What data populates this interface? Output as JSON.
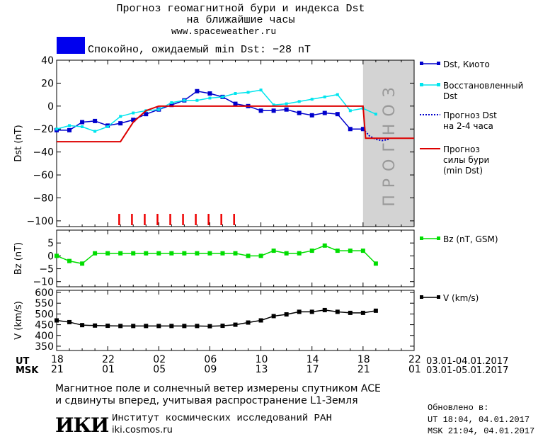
{
  "header": {
    "title_line1": "Прогноз геомагнитной бури и индекса Dst",
    "title_line2": "на ближайшие часы",
    "site": "www.spaceweather.ru",
    "status_text": "Спокойно, ожидаемый min Dst: −28 nT",
    "status_color": "#0000ee"
  },
  "colors": {
    "dst_kyoto": "#0000cc",
    "dst_reconstructed": "#00e5ee",
    "dst_forecast": "#0000cc",
    "storm_forecast": "#dd0000",
    "bz": "#00dd00",
    "v": "#000000",
    "forecast_shade": "#d3d3d3",
    "forecast_label": "#999999",
    "tick_red": "#ee0000"
  },
  "chart_data": [
    {
      "id": "dst",
      "type": "line",
      "ylabel": "Dst (nT)",
      "ylim": [
        -105,
        40
      ],
      "yticks": [
        40,
        20,
        0,
        -20,
        -40,
        -60,
        -80,
        -100
      ],
      "xlim": [
        18,
        46
      ],
      "forecast_region": [
        18,
        0
      ],
      "forecast_region_x": [
        42,
        46
      ],
      "forecast_label": "ПРОГНОЗ",
      "series": [
        {
          "name": "Dst, Киото",
          "color_key": "dst_kyoto",
          "style": "line-square",
          "x": [
            18,
            19,
            20,
            21,
            22,
            23,
            24,
            25,
            26,
            27,
            28,
            29,
            30,
            31,
            32,
            33,
            34,
            35,
            36,
            37,
            38,
            39,
            40,
            41,
            42
          ],
          "y": [
            -21,
            -21,
            -14,
            -13,
            -17,
            -15,
            -12,
            -7,
            -3,
            1,
            5,
            13,
            11,
            8,
            2,
            0,
            -4,
            -4,
            -3,
            -6,
            -8,
            -6,
            -7,
            -20,
            -20
          ]
        },
        {
          "name": "Восстановленный Dst",
          "color_key": "dst_reconstructed",
          "style": "line-square",
          "x": [
            18,
            19,
            20,
            21,
            22,
            23,
            24,
            25,
            26,
            27,
            28,
            29,
            30,
            31,
            32,
            33,
            34,
            35,
            36,
            37,
            38,
            39,
            40,
            41,
            42,
            43
          ],
          "y": [
            -20,
            -17,
            -18,
            -22,
            -18,
            -9,
            -6,
            -4,
            -3,
            3,
            5,
            5,
            7,
            8,
            11,
            12,
            14,
            1,
            2,
            4,
            6,
            8,
            10,
            -4,
            -2,
            -7
          ]
        },
        {
          "name": "Прогноз Dst на 2-4 часа",
          "color_key": "dst_forecast",
          "style": "dotted",
          "x": [
            42,
            42.5,
            43,
            43.5,
            44
          ],
          "y": [
            -20,
            -26,
            -29,
            -30,
            -29
          ]
        },
        {
          "name": "Прогноз силы бури (min Dst)",
          "color_key": "storm_forecast",
          "style": "step",
          "x": [
            18,
            23,
            24,
            25,
            26,
            42,
            42.2,
            46
          ],
          "y": [
            -31,
            -31,
            -14,
            -4,
            0,
            0,
            -28,
            -28
          ]
        }
      ],
      "event_ticks_x": [
        23,
        24,
        25,
        26,
        27,
        28,
        29,
        30,
        31,
        32
      ]
    },
    {
      "id": "bz",
      "type": "line",
      "ylabel": "Bz (nT)",
      "ylim": [
        -12,
        10
      ],
      "yticks": [
        5,
        0,
        -5,
        -10
      ],
      "xlim": [
        18,
        46
      ],
      "series": [
        {
          "name": "Bz (nT, GSM)",
          "color_key": "bz",
          "style": "line-square",
          "x": [
            18,
            19,
            20,
            21,
            22,
            23,
            24,
            25,
            26,
            27,
            28,
            29,
            30,
            31,
            32,
            33,
            34,
            35,
            36,
            37,
            38,
            39,
            40,
            41,
            42,
            43
          ],
          "y": [
            0,
            -2,
            -3,
            1,
            1,
            1,
            1,
            1,
            1,
            1,
            1,
            1,
            1,
            1,
            1,
            0,
            0,
            2,
            1,
            1,
            2,
            4,
            2,
            2,
            2,
            -3
          ]
        }
      ]
    },
    {
      "id": "v",
      "type": "line",
      "ylabel": "V (km/s)",
      "ylim": [
        330,
        610
      ],
      "yticks": [
        600,
        550,
        500,
        450,
        400,
        350
      ],
      "xlim": [
        18,
        46
      ],
      "series": [
        {
          "name": "V (km/s)",
          "color_key": "v",
          "style": "line-square",
          "x": [
            18,
            19,
            20,
            21,
            22,
            23,
            24,
            25,
            26,
            27,
            28,
            29,
            30,
            31,
            32,
            33,
            34,
            35,
            36,
            37,
            38,
            39,
            40,
            41,
            42,
            43
          ],
          "y": [
            470,
            462,
            448,
            446,
            445,
            444,
            444,
            444,
            444,
            444,
            444,
            444,
            443,
            445,
            450,
            460,
            470,
            490,
            498,
            510,
            510,
            518,
            510,
            505,
            505,
            515
          ]
        }
      ]
    }
  ],
  "axis": {
    "ut_label": "UT",
    "msk_label": "MSK",
    "ut_ticks": [
      "18",
      "22",
      "02",
      "06",
      "10",
      "14",
      "18",
      "22"
    ],
    "msk_ticks": [
      "21",
      "01",
      "05",
      "09",
      "13",
      "17",
      "21",
      "01"
    ],
    "ut_range": "03.01-04.01.2017",
    "msk_range": "03.01-05.01.2017"
  },
  "footer": {
    "note_line1": "Магнитное поле и солнечный ветер измерены спутником ACE",
    "note_line2": "и сдвинуты вперед, учитывая распространение L1-Земля",
    "institute_logo": "ИКИ",
    "institute_name": "Институт космических исследований РАН",
    "institute_site": "iki.cosmos.ru",
    "updated_label": "Обновлено в:",
    "updated_ut": "UT  18:04, 04.01.2017",
    "updated_msk": "MSK 21:04, 04.01.2017"
  }
}
